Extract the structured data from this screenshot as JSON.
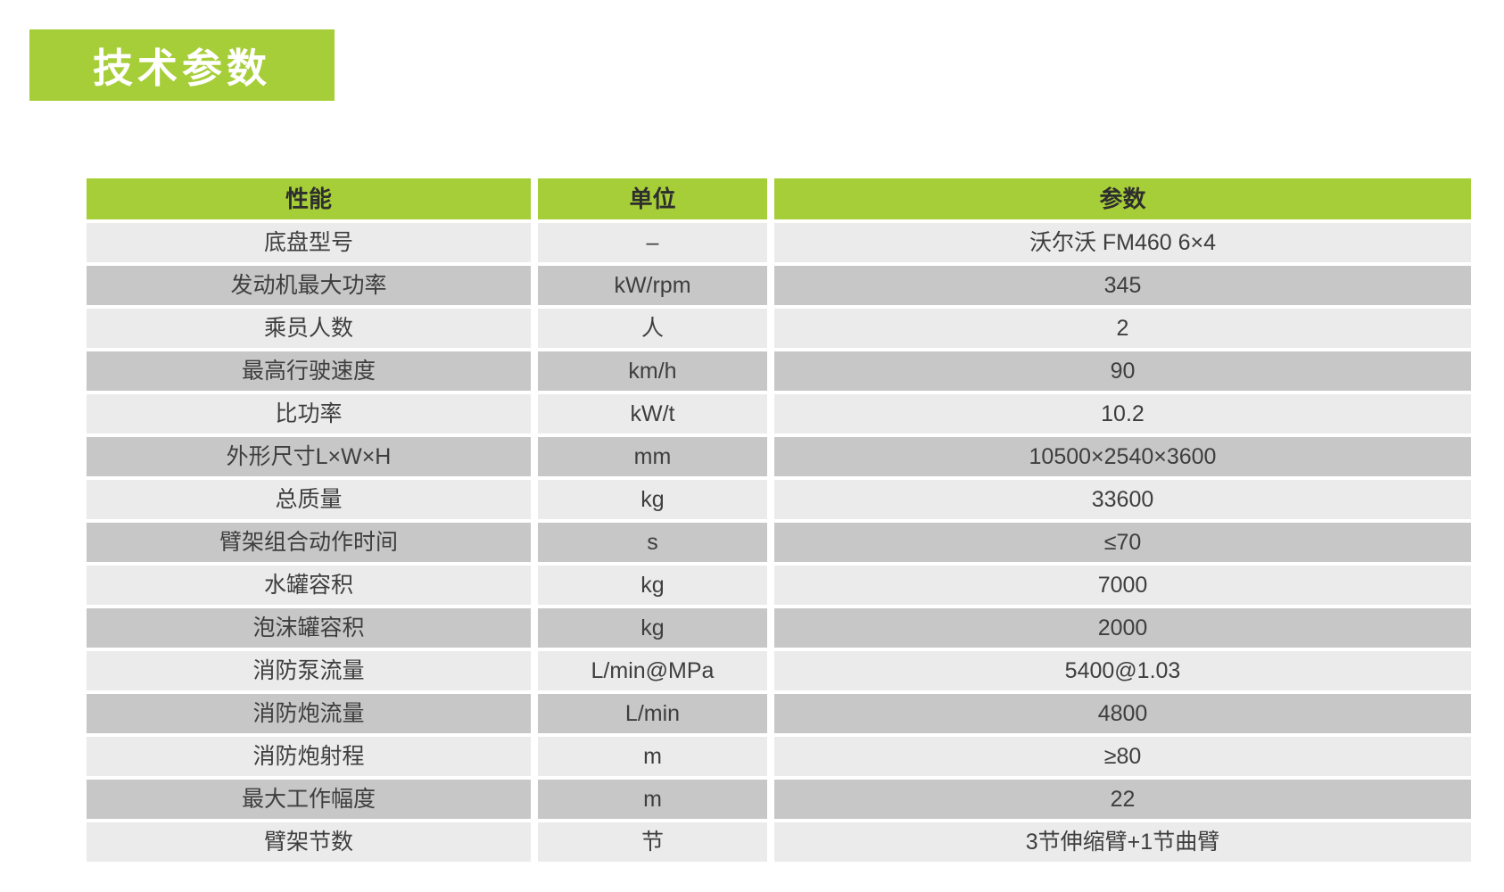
{
  "header": {
    "title": "技术参数"
  },
  "colors": {
    "accent_green": "#a6ce38",
    "row_light": "#ebebeb",
    "row_dark": "#c7c7c7",
    "text_dark": "#3e3e3e",
    "header_text": "#2e2e2e",
    "title_text": "#ffffff",
    "page_bg": "#ffffff"
  },
  "table": {
    "columns": [
      "性能",
      "单位",
      "参数"
    ],
    "rows": [
      {
        "performance": "底盘型号",
        "unit": "–",
        "value": "沃尔沃 FM460 6×4"
      },
      {
        "performance": "发动机最大功率",
        "unit": "kW/rpm",
        "value": "345"
      },
      {
        "performance": "乘员人数",
        "unit": "人",
        "value": "2"
      },
      {
        "performance": "最高行驶速度",
        "unit": "km/h",
        "value": "90"
      },
      {
        "performance": "比功率",
        "unit": "kW/t",
        "value": "10.2"
      },
      {
        "performance": "外形尺寸L×W×H",
        "unit": "mm",
        "value": "10500×2540×3600"
      },
      {
        "performance": "总质量",
        "unit": "kg",
        "value": "33600"
      },
      {
        "performance": "臂架组合动作时间",
        "unit": "s",
        "value": "≤70"
      },
      {
        "performance": "水罐容积",
        "unit": "kg",
        "value": "7000"
      },
      {
        "performance": "泡沫罐容积",
        "unit": "kg",
        "value": "2000"
      },
      {
        "performance": "消防泵流量",
        "unit": "L/min@MPa",
        "value": "5400@1.03"
      },
      {
        "performance": "消防炮流量",
        "unit": "L/min",
        "value": "4800"
      },
      {
        "performance": "消防炮射程",
        "unit": "m",
        "value": "≥80"
      },
      {
        "performance": "最大工作幅度",
        "unit": "m",
        "value": "22"
      },
      {
        "performance": "臂架节数",
        "unit": "节",
        "value": "3节伸缩臂+1节曲臂"
      }
    ]
  }
}
